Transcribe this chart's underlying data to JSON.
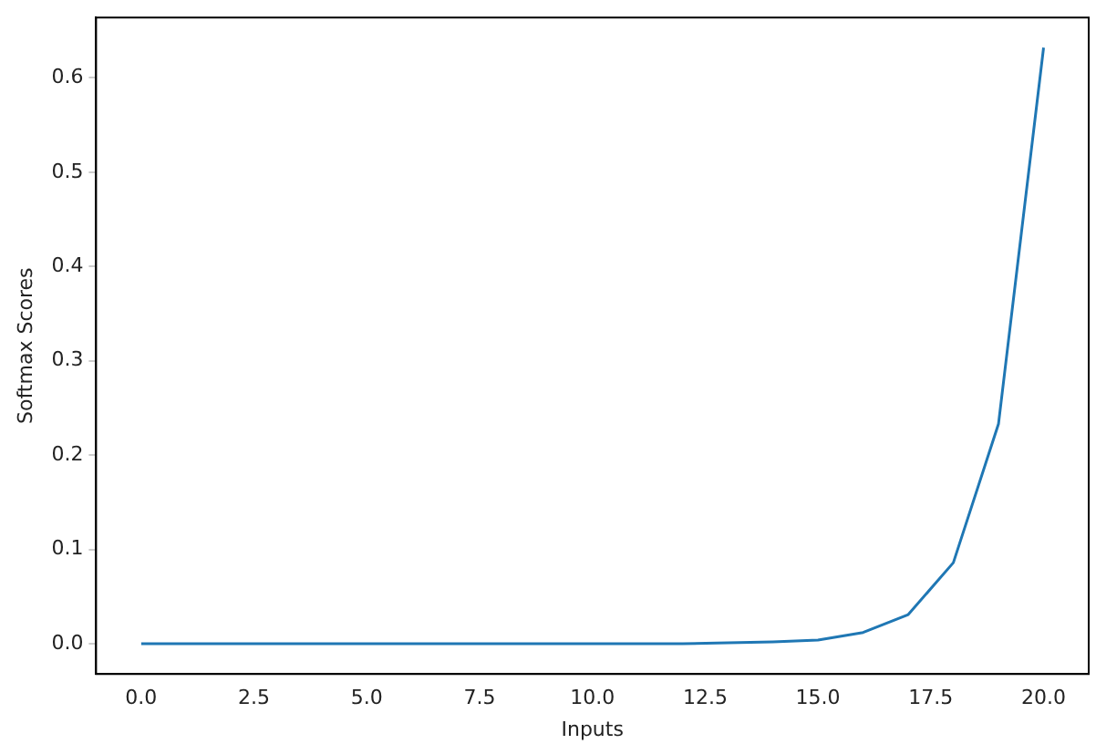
{
  "chart_data": {
    "type": "line",
    "xlabel": "Inputs",
    "ylabel": "Softmax Scores",
    "x": [
      0,
      1,
      2,
      3,
      4,
      5,
      6,
      7,
      8,
      9,
      10,
      11,
      12,
      13,
      14,
      15,
      16,
      17,
      18,
      19,
      20
    ],
    "series": [
      {
        "color": "#1f77b4",
        "values": [
          0,
          0,
          0,
          0,
          0,
          0,
          0,
          0,
          0,
          0,
          0,
          0,
          0,
          0.001,
          0.002,
          0.004,
          0.012,
          0.031,
          0.086,
          0.233,
          0.632
        ]
      }
    ],
    "xlim": [
      -1,
      21
    ],
    "ylim": [
      -0.032,
      0.664
    ],
    "xticks": [
      {
        "value": 0,
        "label": "0.0"
      },
      {
        "value": 2.5,
        "label": "2.5"
      },
      {
        "value": 5,
        "label": "5.0"
      },
      {
        "value": 7.5,
        "label": "7.5"
      },
      {
        "value": 10,
        "label": "10.0"
      },
      {
        "value": 12.5,
        "label": "12.5"
      },
      {
        "value": 15,
        "label": "15.0"
      },
      {
        "value": 17.5,
        "label": "17.5"
      },
      {
        "value": 20,
        "label": "20.0"
      }
    ],
    "yticks": [
      {
        "value": 0,
        "label": "0.0"
      },
      {
        "value": 0.1,
        "label": "0.1"
      },
      {
        "value": 0.2,
        "label": "0.2"
      },
      {
        "value": 0.3,
        "label": "0.3"
      },
      {
        "value": 0.4,
        "label": "0.4"
      },
      {
        "value": 0.5,
        "label": "0.5"
      },
      {
        "value": 0.6,
        "label": "0.6"
      }
    ],
    "grid": false,
    "legend": false,
    "marker": "none",
    "line_style": "solid"
  }
}
